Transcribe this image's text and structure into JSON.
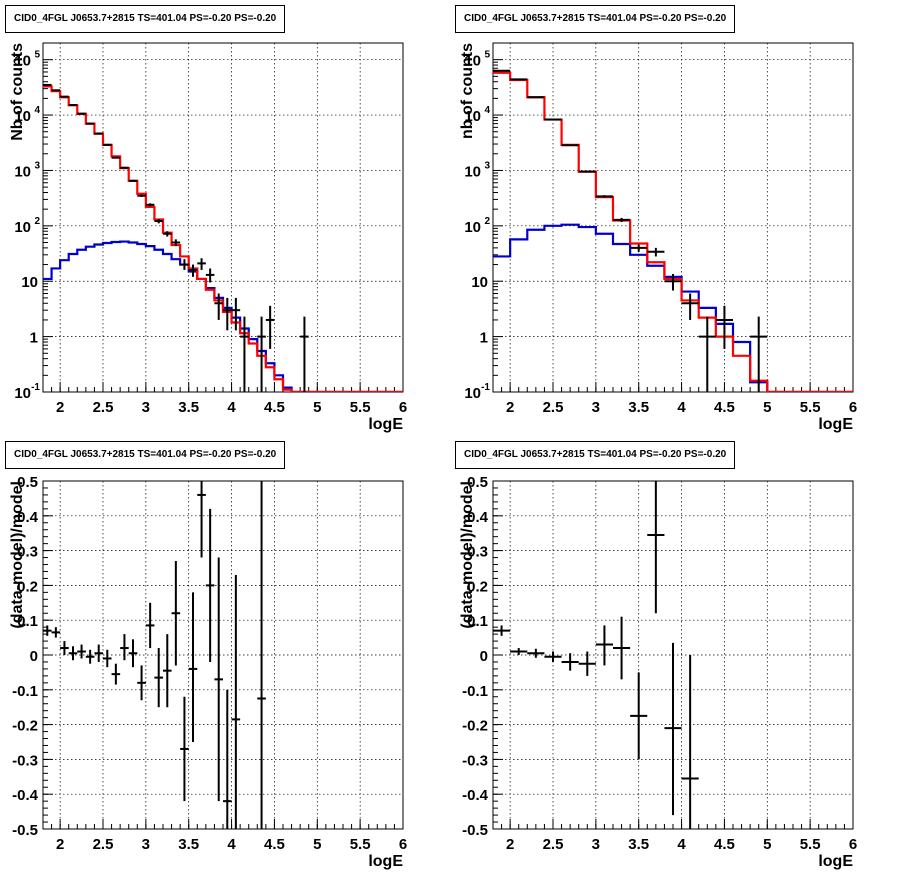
{
  "chart_data": [
    {
      "type": "line",
      "title": "CID0_4FGL J0653.7+2815 TS=401.04 PS=-0.20 PS=-0.20",
      "xlabel": "logE",
      "ylabel": "Nb of counts",
      "ylog": true,
      "xlim": [
        1.8,
        6
      ],
      "ylim": [
        0.1,
        200000
      ],
      "xticks": [
        "2",
        "2.5",
        "3",
        "3.5",
        "4",
        "4.5",
        "5",
        "5.5",
        "6"
      ],
      "yticks": [
        "10^-1",
        "1",
        "10",
        "10^2",
        "10^3",
        "10^4",
        "10^5"
      ],
      "grid": true,
      "bin_edges": [
        1.8,
        1.9,
        2.0,
        2.1,
        2.2,
        2.3,
        2.4,
        2.5,
        2.6,
        2.7,
        2.8,
        2.9,
        3.0,
        3.1,
        3.2,
        3.3,
        3.4,
        3.5,
        3.6,
        3.7,
        3.8,
        3.9,
        4.0,
        4.1,
        4.2,
        4.3,
        4.4,
        4.5,
        4.6,
        4.7,
        4.8,
        4.9,
        5.0,
        5.1,
        5.2,
        5.3,
        5.4,
        5.5,
        5.6,
        5.7,
        5.8,
        5.9,
        6.0
      ],
      "series": [
        {
          "color": "#ff0000",
          "values": [
            33000,
            27000,
            21000,
            15000,
            10500,
            7000,
            4600,
            2900,
            1800,
            1100,
            650,
            380,
            220,
            130,
            75,
            45,
            28,
            17,
            11,
            7,
            4.5,
            2.8,
            1.8,
            1.15,
            0.75,
            0.45,
            0.28,
            0.17,
            0.11,
            0.1,
            0.1,
            0.1,
            0.1,
            0.1,
            0.1,
            0.1,
            0.1,
            0.1,
            0.1,
            0.1,
            0.1,
            0.1
          ]
        },
        {
          "color": "#0000cc",
          "values": [
            11,
            17,
            24,
            31,
            37,
            42,
            46,
            49,
            51,
            52,
            50,
            47,
            43,
            37,
            31,
            25,
            20,
            15,
            11,
            7.5,
            5,
            3.3,
            2.2,
            1.4,
            0.9,
            0.55,
            0.33,
            0.2,
            0.12,
            0.1,
            0.1,
            0.1,
            0.1,
            0.1,
            0.1,
            0.1,
            0.1,
            0.1,
            0.1,
            0.1,
            0.1,
            0.1
          ]
        }
      ],
      "data_points": [
        {
          "x": 1.85,
          "y": 35000,
          "xerr": 0.05,
          "ylo": 34500,
          "yhi": 35500
        },
        {
          "x": 1.95,
          "y": 28000,
          "xerr": 0.05,
          "ylo": 27600,
          "yhi": 28400
        },
        {
          "x": 2.05,
          "y": 21500,
          "xerr": 0.05,
          "ylo": 21200,
          "yhi": 21800
        },
        {
          "x": 2.15,
          "y": 15200,
          "xerr": 0.05,
          "ylo": 14900,
          "yhi": 15500
        },
        {
          "x": 2.25,
          "y": 10600,
          "xerr": 0.05,
          "ylo": 10400,
          "yhi": 10800
        },
        {
          "x": 2.35,
          "y": 7000,
          "xerr": 0.05,
          "ylo": 6850,
          "yhi": 7150
        },
        {
          "x": 2.45,
          "y": 4650,
          "xerr": 0.05,
          "ylo": 4550,
          "yhi": 4750
        },
        {
          "x": 2.55,
          "y": 2900,
          "xerr": 0.05,
          "ylo": 2830,
          "yhi": 2970
        },
        {
          "x": 2.65,
          "y": 1700,
          "xerr": 0.05,
          "ylo": 1650,
          "yhi": 1750
        },
        {
          "x": 2.75,
          "y": 1120,
          "xerr": 0.05,
          "ylo": 1080,
          "yhi": 1160
        },
        {
          "x": 2.85,
          "y": 650,
          "xerr": 0.05,
          "ylo": 625,
          "yhi": 675
        },
        {
          "x": 2.95,
          "y": 350,
          "xerr": 0.05,
          "ylo": 332,
          "yhi": 368
        },
        {
          "x": 3.05,
          "y": 240,
          "xerr": 0.05,
          "ylo": 225,
          "yhi": 255
        },
        {
          "x": 3.15,
          "y": 122,
          "xerr": 0.05,
          "ylo": 111,
          "yhi": 133
        },
        {
          "x": 3.25,
          "y": 72,
          "xerr": 0.05,
          "ylo": 64,
          "yhi": 80
        },
        {
          "x": 3.35,
          "y": 50,
          "xerr": 0.05,
          "ylo": 43,
          "yhi": 57
        },
        {
          "x": 3.45,
          "y": 20,
          "xerr": 0.05,
          "ylo": 16,
          "yhi": 25
        },
        {
          "x": 3.55,
          "y": 16,
          "xerr": 0.05,
          "ylo": 12,
          "yhi": 20
        },
        {
          "x": 3.65,
          "y": 21,
          "xerr": 0.05,
          "ylo": 16,
          "yhi": 26
        },
        {
          "x": 3.75,
          "y": 13,
          "xerr": 0.05,
          "ylo": 9.5,
          "yhi": 17
        },
        {
          "x": 3.85,
          "y": 4,
          "xerr": 0.05,
          "ylo": 2,
          "yhi": 6
        },
        {
          "x": 3.95,
          "y": 3,
          "xerr": 0.05,
          "ylo": 1.3,
          "yhi": 5
        },
        {
          "x": 4.05,
          "y": 3,
          "xerr": 0.05,
          "ylo": 1.3,
          "yhi": 5
        },
        {
          "x": 4.15,
          "y": 1,
          "xerr": 0.05,
          "ylo": 0.1,
          "yhi": 2.3
        },
        {
          "x": 4.35,
          "y": 1,
          "xerr": 0.05,
          "ylo": 0.1,
          "yhi": 2.3
        },
        {
          "x": 4.45,
          "y": 2,
          "xerr": 0.05,
          "ylo": 0.6,
          "yhi": 3.6
        },
        {
          "x": 4.85,
          "y": 1,
          "xerr": 0.05,
          "ylo": 0.1,
          "yhi": 2.3
        }
      ]
    },
    {
      "type": "line",
      "title": "CID0_4FGL J0653.7+2815 TS=401.04 PS=-0.20 PS=-0.20",
      "xlabel": "logE",
      "ylabel": "nb of counts",
      "ylog": true,
      "xlim": [
        1.8,
        6
      ],
      "ylim": [
        0.1,
        200000
      ],
      "xticks": [
        "2",
        "2.5",
        "3",
        "3.5",
        "4",
        "4.5",
        "5",
        "5.5",
        "6"
      ],
      "yticks": [
        "10^-1",
        "1",
        "10",
        "10^2",
        "10^3",
        "10^4",
        "10^5"
      ],
      "grid": true,
      "bin_edges": [
        1.8,
        2.0,
        2.2,
        2.4,
        2.6,
        2.8,
        3.0,
        3.2,
        3.4,
        3.6,
        3.8,
        4.0,
        4.2,
        4.4,
        4.6,
        4.8,
        5.0,
        5.2,
        5.4,
        5.6,
        5.8,
        6.0
      ],
      "series": [
        {
          "color": "#ff0000",
          "values": [
            58000,
            43000,
            21000,
            8300,
            2900,
            950,
            330,
            125,
            48,
            22,
            11,
            4.5,
            2.2,
            1.0,
            0.45,
            0.16,
            0.1,
            0.1,
            0.1,
            0.1,
            0.1
          ]
        },
        {
          "color": "#0000cc",
          "values": [
            28,
            57,
            85,
            100,
            105,
            95,
            72,
            47,
            30,
            19,
            12,
            6.5,
            3.3,
            1.7,
            0.8,
            0.15,
            0.1,
            0.1,
            0.1,
            0.1,
            0.1
          ]
        }
      ],
      "data_points": [
        {
          "x": 1.9,
          "y": 63000,
          "xerr": 0.1,
          "ylo": 62500,
          "yhi": 63500
        },
        {
          "x": 2.1,
          "y": 44000,
          "xerr": 0.1,
          "ylo": 43600,
          "yhi": 44400
        },
        {
          "x": 2.3,
          "y": 21000,
          "xerr": 0.1,
          "ylo": 20800,
          "yhi": 21200
        },
        {
          "x": 2.5,
          "y": 8300,
          "xerr": 0.1,
          "ylo": 8200,
          "yhi": 8400
        },
        {
          "x": 2.7,
          "y": 2850,
          "xerr": 0.1,
          "ylo": 2800,
          "yhi": 2900
        },
        {
          "x": 2.9,
          "y": 950,
          "xerr": 0.1,
          "ylo": 920,
          "yhi": 980
        },
        {
          "x": 3.1,
          "y": 340,
          "xerr": 0.1,
          "ylo": 322,
          "yhi": 358
        },
        {
          "x": 3.3,
          "y": 128,
          "xerr": 0.1,
          "ylo": 117,
          "yhi": 139
        },
        {
          "x": 3.5,
          "y": 40,
          "xerr": 0.1,
          "ylo": 34,
          "yhi": 46
        },
        {
          "x": 3.7,
          "y": 34,
          "xerr": 0.1,
          "ylo": 28,
          "yhi": 40
        },
        {
          "x": 3.9,
          "y": 10,
          "xerr": 0.1,
          "ylo": 6.8,
          "yhi": 13.5
        },
        {
          "x": 4.1,
          "y": 4,
          "xerr": 0.1,
          "ylo": 2,
          "yhi": 6
        },
        {
          "x": 4.3,
          "y": 1,
          "xerr": 0.1,
          "ylo": 0.1,
          "yhi": 2.3
        },
        {
          "x": 4.5,
          "y": 2,
          "xerr": 0.1,
          "ylo": 0.6,
          "yhi": 3.6
        },
        {
          "x": 4.9,
          "y": 1,
          "xerr": 0.1,
          "ylo": 0.1,
          "yhi": 2.3
        }
      ]
    },
    {
      "type": "scatter",
      "title": "CID0_4FGL J0653.7+2815 TS=401.04 PS=-0.20 PS=-0.20",
      "xlabel": "logE",
      "ylabel": "(data-model)/model",
      "ylog": false,
      "xlim": [
        1.8,
        6
      ],
      "ylim": [
        -0.5,
        0.5
      ],
      "xticks": [
        "2",
        "2.5",
        "3",
        "3.5",
        "4",
        "4.5",
        "5",
        "5.5",
        "6"
      ],
      "yticks": [
        "-0.5",
        "-0.4",
        "-0.3",
        "-0.2",
        "-0.1",
        "0",
        "0.1",
        "0.2",
        "0.3",
        "0.4",
        "0.5"
      ],
      "grid": true,
      "data_points": [
        {
          "x": 1.85,
          "y": 0.07,
          "xerr": 0.05,
          "ylo": 0.055,
          "yhi": 0.085
        },
        {
          "x": 1.95,
          "y": 0.065,
          "xerr": 0.05,
          "ylo": 0.05,
          "yhi": 0.08
        },
        {
          "x": 2.05,
          "y": 0.02,
          "xerr": 0.05,
          "ylo": 0.0,
          "yhi": 0.04
        },
        {
          "x": 2.15,
          "y": 0.005,
          "xerr": 0.05,
          "ylo": -0.015,
          "yhi": 0.025
        },
        {
          "x": 2.25,
          "y": 0.01,
          "xerr": 0.05,
          "ylo": -0.01,
          "yhi": 0.03
        },
        {
          "x": 2.35,
          "y": -0.005,
          "xerr": 0.05,
          "ylo": -0.025,
          "yhi": 0.015
        },
        {
          "x": 2.45,
          "y": 0.005,
          "xerr": 0.05,
          "ylo": -0.02,
          "yhi": 0.03
        },
        {
          "x": 2.55,
          "y": -0.01,
          "xerr": 0.05,
          "ylo": -0.035,
          "yhi": 0.015
        },
        {
          "x": 2.65,
          "y": -0.055,
          "xerr": 0.05,
          "ylo": -0.085,
          "yhi": -0.025
        },
        {
          "x": 2.75,
          "y": 0.02,
          "xerr": 0.05,
          "ylo": -0.015,
          "yhi": 0.06
        },
        {
          "x": 2.85,
          "y": 0.005,
          "xerr": 0.05,
          "ylo": -0.035,
          "yhi": 0.045
        },
        {
          "x": 2.95,
          "y": -0.08,
          "xerr": 0.05,
          "ylo": -0.13,
          "yhi": -0.03
        },
        {
          "x": 3.05,
          "y": 0.085,
          "xerr": 0.05,
          "ylo": 0.02,
          "yhi": 0.15
        },
        {
          "x": 3.15,
          "y": -0.065,
          "xerr": 0.05,
          "ylo": -0.15,
          "yhi": 0.02
        },
        {
          "x": 3.25,
          "y": -0.045,
          "xerr": 0.05,
          "ylo": -0.15,
          "yhi": 0.06
        },
        {
          "x": 3.35,
          "y": 0.12,
          "xerr": 0.05,
          "ylo": -0.03,
          "yhi": 0.27
        },
        {
          "x": 3.45,
          "y": -0.27,
          "xerr": 0.05,
          "ylo": -0.42,
          "yhi": -0.12
        },
        {
          "x": 3.55,
          "y": -0.04,
          "xerr": 0.05,
          "ylo": -0.25,
          "yhi": 0.18
        },
        {
          "x": 3.65,
          "y": 0.46,
          "xerr": 0.05,
          "ylo": 0.28,
          "yhi": 0.65
        },
        {
          "x": 3.75,
          "y": 0.2,
          "xerr": 0.05,
          "ylo": -0.02,
          "yhi": 0.42
        },
        {
          "x": 3.85,
          "y": -0.07,
          "xerr": 0.05,
          "ylo": -0.42,
          "yhi": 0.28
        },
        {
          "x": 3.95,
          "y": -0.42,
          "xerr": 0.05,
          "ylo": -0.7,
          "yhi": -0.1
        },
        {
          "x": 4.05,
          "y": -0.185,
          "xerr": 0.05,
          "ylo": -0.55,
          "yhi": 0.23
        },
        {
          "x": 4.35,
          "y": -0.125,
          "xerr": 0.05,
          "ylo": -0.7,
          "yhi": 0.6
        }
      ]
    },
    {
      "type": "scatter",
      "title": "CID0_4FGL J0653.7+2815 TS=401.04 PS=-0.20 PS=-0.20",
      "xlabel": "logE",
      "ylabel": "(data-model)/model",
      "ylog": false,
      "xlim": [
        1.8,
        6
      ],
      "ylim": [
        -0.5,
        0.5
      ],
      "xticks": [
        "2",
        "2.5",
        "3",
        "3.5",
        "4",
        "4.5",
        "5",
        "5.5",
        "6"
      ],
      "yticks": [
        "-0.5",
        "-0.4",
        "-0.3",
        "-0.2",
        "-0.1",
        "0",
        "0.1",
        "0.2",
        "0.3",
        "0.4",
        "0.5"
      ],
      "grid": true,
      "data_points": [
        {
          "x": 1.9,
          "y": 0.07,
          "xerr": 0.1,
          "ylo": 0.055,
          "yhi": 0.085
        },
        {
          "x": 2.1,
          "y": 0.01,
          "xerr": 0.1,
          "ylo": 0.0,
          "yhi": 0.02
        },
        {
          "x": 2.3,
          "y": 0.005,
          "xerr": 0.1,
          "ylo": -0.008,
          "yhi": 0.018
        },
        {
          "x": 2.5,
          "y": -0.005,
          "xerr": 0.1,
          "ylo": -0.02,
          "yhi": 0.01
        },
        {
          "x": 2.7,
          "y": -0.02,
          "xerr": 0.1,
          "ylo": -0.045,
          "yhi": 0.005
        },
        {
          "x": 2.9,
          "y": -0.025,
          "xerr": 0.1,
          "ylo": -0.06,
          "yhi": 0.01
        },
        {
          "x": 3.1,
          "y": 0.03,
          "xerr": 0.1,
          "ylo": -0.03,
          "yhi": 0.085
        },
        {
          "x": 3.3,
          "y": 0.02,
          "xerr": 0.1,
          "ylo": -0.07,
          "yhi": 0.11
        },
        {
          "x": 3.5,
          "y": -0.175,
          "xerr": 0.1,
          "ylo": -0.3,
          "yhi": -0.05
        },
        {
          "x": 3.7,
          "y": 0.345,
          "xerr": 0.1,
          "ylo": 0.12,
          "yhi": 0.57
        },
        {
          "x": 3.9,
          "y": -0.21,
          "xerr": 0.1,
          "ylo": -0.46,
          "yhi": 0.035
        },
        {
          "x": 4.1,
          "y": -0.355,
          "xerr": 0.1,
          "ylo": -0.7,
          "yhi": 0.0
        }
      ]
    }
  ]
}
